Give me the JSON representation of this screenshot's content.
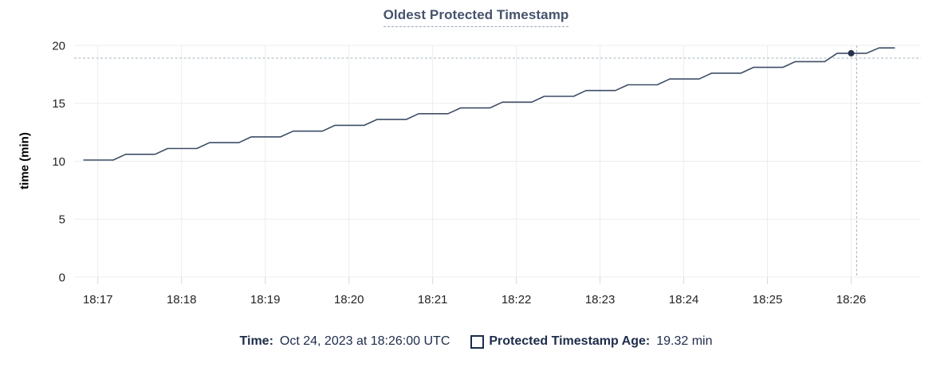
{
  "colors": {
    "bg": "#ffffff",
    "title": "#46536c",
    "underline": "#9aa9bd",
    "line": "#3e4d66",
    "dot": "#26324c",
    "crosshair": "#a6b6c2",
    "grid": "#ededed",
    "tick": "#d9d9d9",
    "axistext": "#242424",
    "legendtext": "#1d2c4a"
  },
  "chart_data": {
    "type": "line",
    "title": "Oldest Protected Timestamp",
    "ylabel": "time (min)",
    "xlabel": "",
    "ylim": [
      0,
      20
    ],
    "yticks": [
      0,
      5,
      10,
      15,
      20
    ],
    "xticks": [
      "18:17",
      "18:18",
      "18:19",
      "18:20",
      "18:21",
      "18:22",
      "18:23",
      "18:24",
      "18:25",
      "18:26"
    ],
    "x_domain": [
      "18:16:43",
      "18:26:50"
    ],
    "grid": true,
    "legend_position": "bottom",
    "series": [
      {
        "name": "Protected Timestamp Age",
        "points": [
          [
            "18:16:50",
            10.1
          ],
          [
            "18:17:11",
            10.1
          ],
          [
            "18:17:20",
            10.6
          ],
          [
            "18:17:41",
            10.6
          ],
          [
            "18:17:50",
            11.1
          ],
          [
            "18:18:11",
            11.1
          ],
          [
            "18:18:20",
            11.6
          ],
          [
            "18:18:41",
            11.6
          ],
          [
            "18:18:50",
            12.1
          ],
          [
            "18:19:11",
            12.1
          ],
          [
            "18:19:20",
            12.6
          ],
          [
            "18:19:41",
            12.6
          ],
          [
            "18:19:50",
            13.1
          ],
          [
            "18:20:11",
            13.1
          ],
          [
            "18:20:20",
            13.6
          ],
          [
            "18:20:41",
            13.6
          ],
          [
            "18:20:50",
            14.1
          ],
          [
            "18:21:11",
            14.1
          ],
          [
            "18:21:20",
            14.6
          ],
          [
            "18:21:41",
            14.6
          ],
          [
            "18:21:50",
            15.1
          ],
          [
            "18:22:11",
            15.1
          ],
          [
            "18:22:20",
            15.6
          ],
          [
            "18:22:41",
            15.6
          ],
          [
            "18:22:50",
            16.1
          ],
          [
            "18:23:11",
            16.1
          ],
          [
            "18:23:20",
            16.6
          ],
          [
            "18:23:41",
            16.6
          ],
          [
            "18:23:50",
            17.1
          ],
          [
            "18:24:11",
            17.1
          ],
          [
            "18:24:20",
            17.6
          ],
          [
            "18:24:41",
            17.6
          ],
          [
            "18:24:50",
            18.1
          ],
          [
            "18:25:11",
            18.1
          ],
          [
            "18:25:20",
            18.6
          ],
          [
            "18:25:41",
            18.6
          ],
          [
            "18:25:50",
            19.32
          ],
          [
            "18:26:11",
            19.32
          ],
          [
            "18:26:20",
            19.78
          ],
          [
            "18:26:31",
            19.78
          ]
        ]
      }
    ],
    "hover": {
      "time": "18:26:00",
      "value": 19.32,
      "mouse_time": "18:26:04",
      "mouse_value": 18.9
    }
  },
  "legend": {
    "time_label": "Time:",
    "time_value": "Oct 24, 2023 at 18:26:00 UTC",
    "series_label": "Protected Timestamp Age:",
    "series_value": "19.32 min"
  }
}
